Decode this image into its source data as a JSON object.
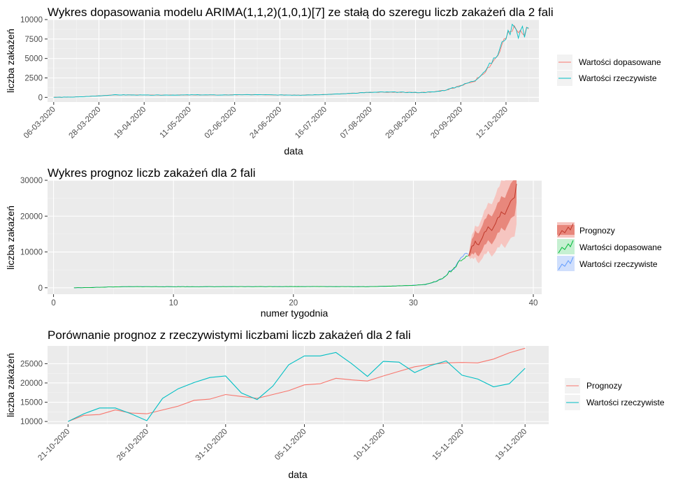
{
  "colors": {
    "panel": "#ebebeb",
    "grid_major": "#ffffff",
    "grid_minor": "#f5f5f5",
    "red": "#F8766D",
    "cyan": "#00BFC4",
    "green": "#00BA38",
    "blue": "#619CFF",
    "fc_line": "#c0392b",
    "ci80": "#e8877c",
    "ci95": "#f6c5c0",
    "tick": "#4d4d4d"
  },
  "chart_data": [
    {
      "id": "fit",
      "type": "line",
      "title": "Wykres dopasowania modelu ARIMA(1,1,2)(1,0,1)[7] ze stałą do szeregu liczb zakażeń dla 2 fali",
      "xlabel": "data",
      "ylabel": "liczba zakażeń",
      "x_tick_labels": [
        "06-03-2020",
        "28-03-2020",
        "19-04-2020",
        "11-05-2020",
        "02-06-2020",
        "24-06-2020",
        "16-07-2020",
        "07-08-2020",
        "29-08-2020",
        "20-09-2020",
        "12-10-2020"
      ],
      "x_range_days": [
        -3,
        236
      ],
      "ylim": [
        -600,
        10000
      ],
      "y_ticks": [
        0,
        2500,
        5000,
        7500,
        10000
      ],
      "legend": [
        "Wartości dopasowane",
        "Wartości rzeczywiste"
      ],
      "legend_position": "right",
      "series": [
        {
          "name": "Wartości rzeczywiste",
          "color": "cyan",
          "knots": [
            [
              0,
              0
            ],
            [
              12,
              50
            ],
            [
              22,
              200
            ],
            [
              30,
              320
            ],
            [
              40,
              300
            ],
            [
              50,
              290
            ],
            [
              60,
              300
            ],
            [
              70,
              320
            ],
            [
              80,
              300
            ],
            [
              90,
              330
            ],
            [
              100,
              340
            ],
            [
              110,
              300
            ],
            [
              120,
              290
            ],
            [
              130,
              350
            ],
            [
              140,
              450
            ],
            [
              150,
              600
            ],
            [
              160,
              680
            ],
            [
              170,
              650
            ],
            [
              178,
              620
            ],
            [
              185,
              700
            ],
            [
              190,
              900
            ],
            [
              195,
              1250
            ],
            [
              200,
              1700
            ],
            [
              205,
              2200
            ],
            [
              210,
              3500
            ],
            [
              213,
              4500
            ],
            [
              216,
              5500
            ],
            [
              219,
              7500
            ],
            [
              222,
              8500
            ],
            [
              224,
              9600
            ],
            [
              226,
              8000
            ],
            [
              228,
              9000
            ],
            [
              229,
              7800
            ],
            [
              231,
              9300
            ]
          ]
        },
        {
          "name": "Wartości dopasowane",
          "color": "red",
          "knots": [
            [
              0,
              0
            ],
            [
              12,
              50
            ],
            [
              22,
              200
            ],
            [
              30,
              320
            ],
            [
              40,
              300
            ],
            [
              50,
              290
            ],
            [
              60,
              300
            ],
            [
              70,
              320
            ],
            [
              80,
              300
            ],
            [
              90,
              330
            ],
            [
              100,
              340
            ],
            [
              110,
              300
            ],
            [
              120,
              290
            ],
            [
              130,
              350
            ],
            [
              140,
              450
            ],
            [
              150,
              600
            ],
            [
              160,
              680
            ],
            [
              170,
              650
            ],
            [
              178,
              620
            ],
            [
              185,
              700
            ],
            [
              190,
              900
            ],
            [
              195,
              1250
            ],
            [
              200,
              1650
            ],
            [
              205,
              2150
            ],
            [
              210,
              3400
            ],
            [
              213,
              4400
            ],
            [
              216,
              5400
            ],
            [
              219,
              7300
            ],
            [
              222,
              8300
            ],
            [
              224,
              8900
            ],
            [
              226,
              8300
            ],
            [
              228,
              8600
            ],
            [
              229,
              8200
            ],
            [
              231,
              8900
            ]
          ]
        }
      ]
    },
    {
      "id": "forecast",
      "type": "line",
      "title": "Wykres prognoz liczb zakażeń dla 2 fali",
      "xlabel": "numer tygodnia",
      "ylabel": "liczba zakażeń",
      "xlim": [
        -0.5,
        40.7
      ],
      "x_ticks": [
        0,
        10,
        20,
        30,
        40
      ],
      "ylim": [
        -1800,
        30000
      ],
      "y_ticks": [
        0,
        10000,
        20000,
        30000
      ],
      "legend": [
        "Prognozy",
        "Wartości dopasowane",
        "Wartości rzeczywiste"
      ],
      "legend_position": "right",
      "series_observed": {
        "name": "Wartości rzeczywiste",
        "color": "blue",
        "knots": [
          [
            1.7,
            0
          ],
          [
            3,
            50
          ],
          [
            4.5,
            200
          ],
          [
            6,
            300
          ],
          [
            10,
            300
          ],
          [
            14,
            300
          ],
          [
            18,
            320
          ],
          [
            22,
            340
          ],
          [
            25,
            300
          ],
          [
            26,
            300
          ],
          [
            28,
            450
          ],
          [
            29.8,
            650
          ],
          [
            31,
            900
          ],
          [
            31.8,
            1700
          ],
          [
            32.5,
            2700
          ],
          [
            33,
            4500
          ],
          [
            33.4,
            5500
          ],
          [
            33.8,
            7500
          ],
          [
            34.1,
            8500
          ],
          [
            34.4,
            9300
          ],
          [
            34.6,
            9000
          ]
        ]
      },
      "series_fitted": {
        "name": "Wartości dopasowane",
        "color": "green",
        "knots": [
          [
            1.7,
            0
          ],
          [
            3,
            50
          ],
          [
            4.5,
            200
          ],
          [
            6,
            300
          ],
          [
            10,
            300
          ],
          [
            14,
            300
          ],
          [
            18,
            320
          ],
          [
            22,
            340
          ],
          [
            25,
            300
          ],
          [
            26,
            300
          ],
          [
            28,
            450
          ],
          [
            29.8,
            650
          ],
          [
            31,
            900
          ],
          [
            31.8,
            1700
          ],
          [
            32.5,
            2600
          ],
          [
            33,
            4400
          ],
          [
            33.4,
            5400
          ],
          [
            33.8,
            7300
          ],
          [
            34.1,
            8300
          ],
          [
            34.4,
            8900
          ],
          [
            34.6,
            8900
          ]
        ]
      },
      "forecast": {
        "name": "Prognozy",
        "color": "fc_line",
        "points": [
          [
            34.6,
            8900
          ],
          [
            34.74,
            10000
          ],
          [
            34.88,
            11600
          ],
          [
            35.02,
            11800
          ],
          [
            35.16,
            13000
          ],
          [
            35.3,
            12200
          ],
          [
            35.45,
            12000
          ],
          [
            35.6,
            13000
          ],
          [
            35.76,
            14000
          ],
          [
            35.92,
            15500
          ],
          [
            36.07,
            15800
          ],
          [
            36.23,
            17000
          ],
          [
            36.38,
            16500
          ],
          [
            36.54,
            16000
          ],
          [
            36.7,
            17000
          ],
          [
            36.86,
            18000
          ],
          [
            37.02,
            19500
          ],
          [
            37.18,
            19800
          ],
          [
            37.33,
            21200
          ],
          [
            37.48,
            20800
          ],
          [
            37.64,
            20500
          ],
          [
            37.8,
            21800
          ],
          [
            37.96,
            23000
          ],
          [
            38.12,
            24200
          ],
          [
            38.28,
            24800
          ],
          [
            38.44,
            25200
          ],
          [
            38.6,
            29000
          ]
        ],
        "band80_halfwidth": [
          0,
          1200,
          2000,
          2500,
          3000,
          3100,
          3200,
          3300,
          3400,
          3500,
          3600,
          3700,
          3800,
          3900,
          4000,
          4100,
          4200,
          4300,
          4400,
          4500,
          4600,
          4700,
          4800,
          4900,
          5000,
          5100,
          5200
        ],
        "band95_halfwidth": [
          0,
          2000,
          3200,
          3800,
          4400,
          4800,
          5200,
          5500,
          5800,
          6100,
          6400,
          6700,
          7000,
          7300,
          7600,
          7900,
          8200,
          8500,
          8800,
          9100,
          9400,
          9700,
          10000,
          10300,
          10600,
          10900,
          11200
        ]
      }
    },
    {
      "id": "compare",
      "type": "line",
      "title": "Porównanie prognoz z rzeczywistymi liczbami liczb zakażeń dla 2 fali",
      "xlabel": "data",
      "ylabel": "liczba zakażeń",
      "x_tick_labels": [
        "21-10-2020",
        "26-10-2020",
        "31-10-2020",
        "05-11-2020",
        "10-11-2020",
        "15-11-2020",
        "19-11-2020"
      ],
      "x_tick_days": [
        0,
        5,
        10,
        15,
        20,
        25,
        29
      ],
      "xlim": [
        -1.3,
        30.5
      ],
      "ylim": [
        9300,
        29600
      ],
      "y_ticks": [
        10000,
        15000,
        20000,
        25000
      ],
      "legend": [
        "Prognozy",
        "Wartości rzeczywiste"
      ],
      "legend_position": "right",
      "series": [
        {
          "name": "Prognozy",
          "color": "red",
          "values": [
            10000,
            11600,
            11800,
            13000,
            12200,
            12000,
            13000,
            14000,
            15500,
            15800,
            17000,
            16500,
            16000,
            17000,
            18000,
            19500,
            19800,
            21200,
            20800,
            20500,
            21800,
            23000,
            24200,
            24800,
            25200,
            25300,
            25200,
            26200,
            27800,
            29000
          ]
        },
        {
          "name": "Wartości rzeczywiste",
          "color": "cyan",
          "values": [
            10000,
            12000,
            13500,
            13500,
            12000,
            10200,
            16000,
            18500,
            20100,
            21400,
            21800,
            17400,
            15700,
            19200,
            24700,
            27000,
            27000,
            27900,
            25000,
            21700,
            25600,
            25400,
            22700,
            24500,
            25700,
            22000,
            21000,
            19000,
            19800,
            23800
          ]
        }
      ]
    }
  ]
}
